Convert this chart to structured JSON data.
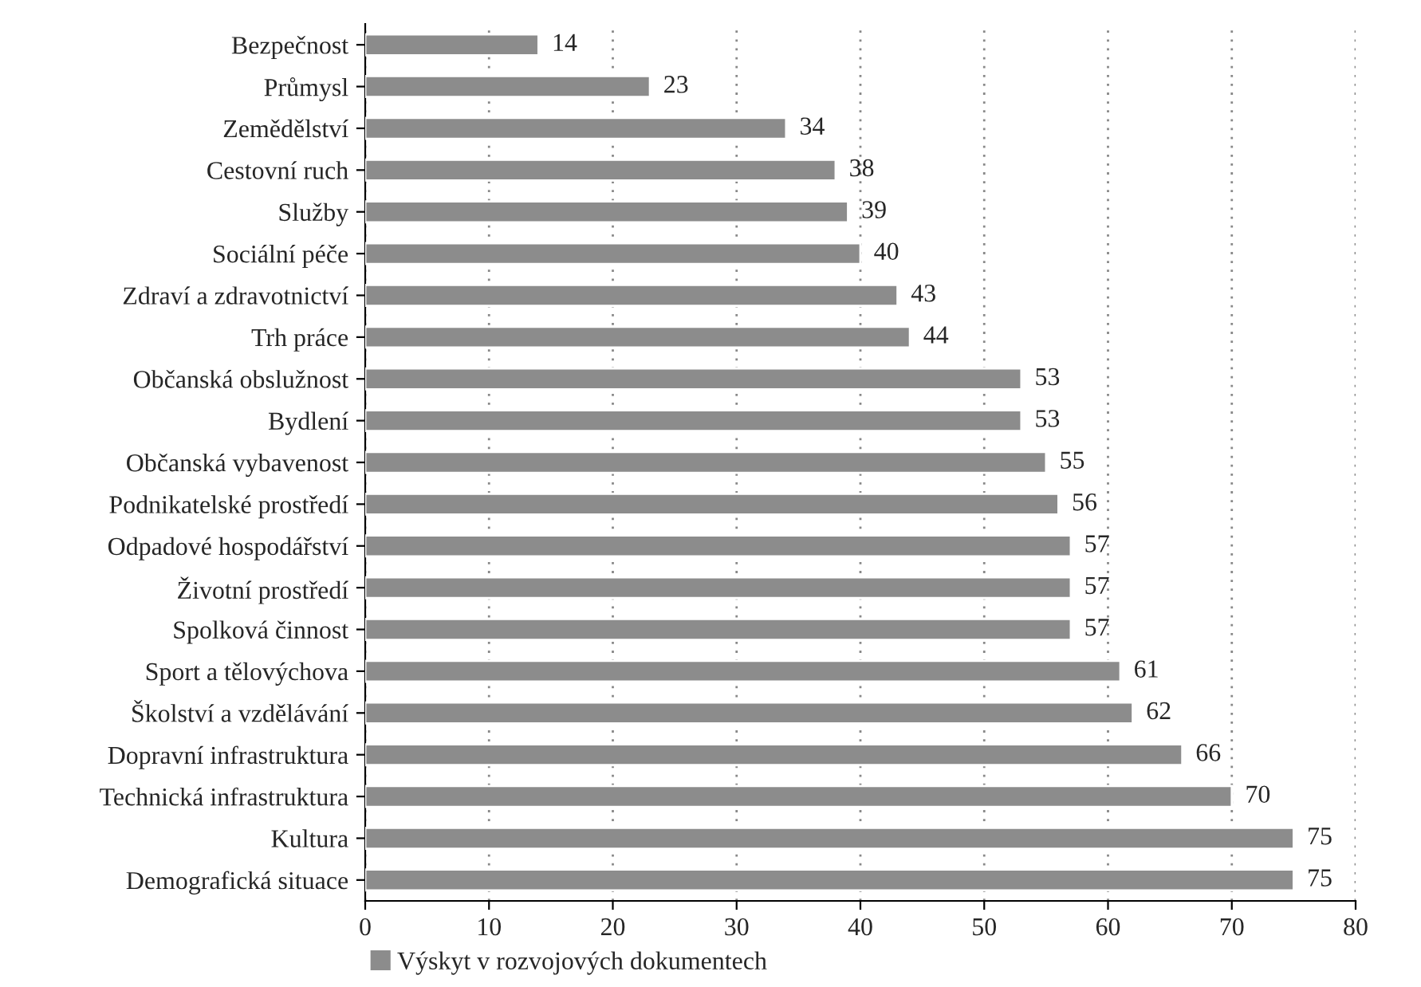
{
  "chart_data": {
    "type": "bar",
    "orientation": "horizontal",
    "categories": [
      "Bezpečnost",
      "Průmysl",
      "Zemědělství",
      "Cestovní ruch",
      "Služby",
      "Sociální péče",
      "Zdraví a zdravotnictví",
      "Trh práce",
      "Občanská obslužnost",
      "Bydlení",
      "Občanská vybavenost",
      "Podnikatelské prostředí",
      "Odpadové hospodářství",
      "Životní prostředí",
      "Spolková činnost",
      "Sport a tělovýchova",
      "Školství a vzdělávání",
      "Dopravní infrastruktura",
      "Technická infrastruktura",
      "Kultura",
      "Demografická situace"
    ],
    "series": [
      {
        "name": "Výskyt v rozvojových dokumentech",
        "color": "#8c8c8c",
        "values": [
          14,
          23,
          34,
          38,
          39,
          40,
          43,
          44,
          53,
          53,
          55,
          56,
          57,
          57,
          57,
          61,
          62,
          66,
          70,
          75,
          75
        ]
      }
    ],
    "xlim": [
      0,
      80
    ],
    "xticks": [
      0,
      10,
      20,
      30,
      40,
      50,
      60,
      70,
      80
    ],
    "grid": "x",
    "legend": "bottom",
    "data_labels": true
  }
}
